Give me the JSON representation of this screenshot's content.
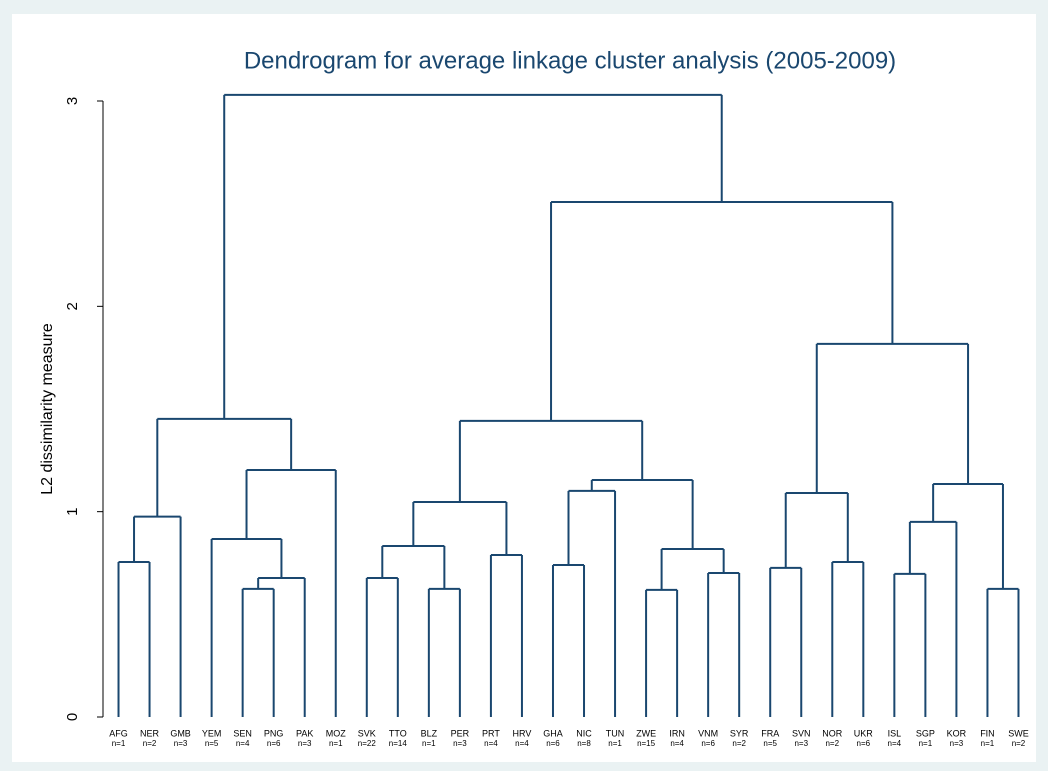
{
  "chart_data": {
    "type": "dendrogram",
    "title": "Dendrogram for average linkage cluster analysis (2005-2009)",
    "y_label": "L2 dissimilarity measure",
    "color": "#1a476f",
    "ylim": [
      0,
      3
    ],
    "yticks": [
      0,
      1,
      2,
      3
    ],
    "tree": {
      "height": 3.03,
      "children": [
        {
          "height": 1.452,
          "children": [
            {
              "height": 0.976,
              "children": [
                {
                  "height": 0.755,
                  "children": [
                    {
                      "label": "AFG",
                      "count": "n=1"
                    },
                    {
                      "label": "NER",
                      "count": "n=2"
                    }
                  ]
                },
                {
                  "label": "GMB",
                  "count": "n=3"
                }
              ]
            },
            {
              "height": 1.203,
              "children": [
                {
                  "height": 0.867,
                  "children": [
                    {
                      "label": "YEM",
                      "count": "n=5"
                    },
                    {
                      "height": 0.677,
                      "children": [
                        {
                          "height": 0.624,
                          "children": [
                            {
                              "label": "SEN",
                              "count": "n=4"
                            },
                            {
                              "label": "PNG",
                              "count": "n=6"
                            }
                          ]
                        },
                        {
                          "label": "PAK",
                          "count": "n=3"
                        }
                      ]
                    }
                  ]
                },
                {
                  "label": "MOZ",
                  "count": "n=1"
                }
              ]
            }
          ]
        },
        {
          "height": 2.508,
          "children": [
            {
              "height": 1.442,
              "children": [
                {
                  "height": 1.047,
                  "children": [
                    {
                      "height": 0.833,
                      "children": [
                        {
                          "height": 0.677,
                          "children": [
                            {
                              "label": "SVK",
                              "count": "n=22"
                            },
                            {
                              "label": "TTO",
                              "count": "n=14"
                            }
                          ]
                        },
                        {
                          "height": 0.624,
                          "children": [
                            {
                              "label": "BLZ",
                              "count": "n=1"
                            },
                            {
                              "label": "PER",
                              "count": "n=3"
                            }
                          ]
                        }
                      ]
                    },
                    {
                      "height": 0.789,
                      "children": [
                        {
                          "label": "PRT",
                          "count": "n=4"
                        },
                        {
                          "label": "HRV",
                          "count": "n=4"
                        }
                      ]
                    }
                  ]
                },
                {
                  "height": 1.154,
                  "children": [
                    {
                      "height": 1.101,
                      "children": [
                        {
                          "height": 0.74,
                          "children": [
                            {
                              "label": "GHA",
                              "count": "n=6"
                            },
                            {
                              "label": "NIC",
                              "count": "n=8"
                            }
                          ]
                        },
                        {
                          "label": "TUN",
                          "count": "n=1"
                        }
                      ]
                    },
                    {
                      "height": 0.818,
                      "children": [
                        {
                          "height": 0.619,
                          "children": [
                            {
                              "label": "ZWE",
                              "count": "n=15"
                            },
                            {
                              "label": "IRN",
                              "count": "n=4"
                            }
                          ]
                        },
                        {
                          "height": 0.701,
                          "children": [
                            {
                              "label": "VNM",
                              "count": "n=6"
                            },
                            {
                              "label": "SYR",
                              "count": "n=2"
                            }
                          ]
                        }
                      ]
                    }
                  ]
                }
              ]
            },
            {
              "height": 1.817,
              "children": [
                {
                  "height": 1.091,
                  "children": [
                    {
                      "height": 0.726,
                      "children": [
                        {
                          "label": "FRA",
                          "count": "n=5"
                        },
                        {
                          "label": "SVN",
                          "count": "n=3"
                        }
                      ]
                    },
                    {
                      "height": 0.755,
                      "children": [
                        {
                          "label": "NOR",
                          "count": "n=2"
                        },
                        {
                          "label": "UKR",
                          "count": "n=6"
                        }
                      ]
                    }
                  ]
                },
                {
                  "height": 1.135,
                  "children": [
                    {
                      "height": 0.95,
                      "children": [
                        {
                          "height": 0.697,
                          "children": [
                            {
                              "label": "ISL",
                              "count": "n=4"
                            },
                            {
                              "label": "SGP",
                              "count": "n=1"
                            }
                          ]
                        },
                        {
                          "label": "KOR",
                          "count": "n=3"
                        }
                      ]
                    },
                    {
                      "height": 0.624,
                      "children": [
                        {
                          "label": "FIN",
                          "count": "n=1"
                        },
                        {
                          "label": "SWE",
                          "count": "n=2"
                        }
                      ]
                    }
                  ]
                }
              ]
            }
          ]
        }
      ]
    }
  }
}
